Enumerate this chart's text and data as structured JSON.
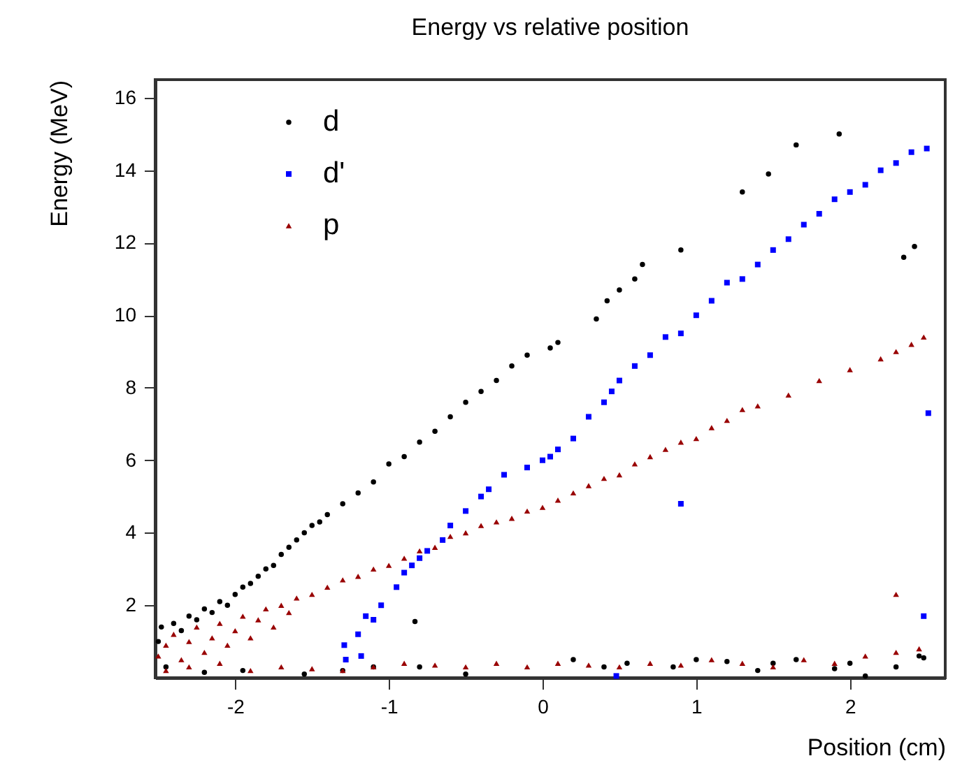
{
  "chart_data": {
    "type": "scatter",
    "title": "Energy vs relative position",
    "xlabel": "Position (cm)",
    "ylabel": "Energy (MeV)",
    "xlim": [
      -2.52,
      2.62
    ],
    "xticks": [
      -2,
      -1,
      0,
      1,
      2
    ],
    "ylim": [
      0,
      16.5
    ],
    "yticks": [
      2,
      4,
      6,
      8,
      10,
      12,
      14,
      16
    ],
    "grid": false,
    "legend": "top left",
    "series": [
      {
        "name": "d",
        "color": "#000000",
        "marker": "circle",
        "x": [
          -2.5,
          -2.48,
          -2.4,
          -2.35,
          -2.3,
          -2.25,
          -2.2,
          -2.15,
          -2.1,
          -2.05,
          -2.0,
          -1.95,
          -1.9,
          -1.85,
          -1.8,
          -1.75,
          -1.7,
          -1.65,
          -1.6,
          -1.55,
          -1.5,
          -1.45,
          -1.4,
          -1.3,
          -1.2,
          -1.1,
          -1.0,
          -0.9,
          -0.8,
          -0.7,
          -0.6,
          -0.5,
          -0.4,
          -0.3,
          -0.2,
          -0.1,
          0.05,
          0.1,
          0.35,
          0.42,
          0.5,
          0.6,
          0.65,
          0.9,
          1.3,
          1.47,
          1.65,
          1.93,
          2.35,
          2.42,
          -0.83,
          -2.45,
          -2.2,
          -1.95,
          -1.55,
          -1.3,
          -1.1,
          -0.8,
          -0.5,
          0.2,
          0.4,
          0.55,
          0.85,
          1.0,
          1.2,
          1.4,
          1.5,
          1.65,
          1.9,
          2.0,
          2.1,
          2.3,
          2.45,
          2.48
        ],
        "values": [
          1.0,
          1.4,
          1.5,
          1.3,
          1.7,
          1.6,
          1.9,
          1.8,
          2.1,
          2.0,
          2.3,
          2.5,
          2.6,
          2.8,
          3.0,
          3.1,
          3.4,
          3.6,
          3.8,
          4.0,
          4.2,
          4.3,
          4.5,
          4.8,
          5.1,
          5.4,
          5.9,
          6.1,
          6.5,
          6.8,
          7.2,
          7.6,
          7.9,
          8.2,
          8.6,
          8.9,
          9.1,
          9.25,
          9.9,
          10.4,
          10.7,
          11.0,
          11.4,
          11.8,
          13.4,
          13.9,
          14.7,
          15.0,
          11.6,
          11.9,
          1.55,
          0.3,
          0.15,
          0.2,
          0.1,
          0.2,
          0.3,
          0.3,
          0.1,
          0.5,
          0.3,
          0.4,
          0.3,
          0.5,
          0.45,
          0.2,
          0.4,
          0.5,
          0.25,
          0.4,
          0.05,
          0.3,
          0.6,
          0.55
        ]
      },
      {
        "name": "d'",
        "color": "#0000ff",
        "marker": "square",
        "x": [
          -1.28,
          -1.29,
          -1.2,
          -1.18,
          -1.15,
          -1.1,
          -1.05,
          -0.95,
          -0.9,
          -0.85,
          -0.8,
          -0.75,
          -0.65,
          -0.6,
          -0.5,
          -0.4,
          -0.35,
          -0.25,
          -0.1,
          0.0,
          0.05,
          0.1,
          0.2,
          0.3,
          0.4,
          0.45,
          0.5,
          0.6,
          0.7,
          0.8,
          0.9,
          1.0,
          1.1,
          1.2,
          1.3,
          1.4,
          1.5,
          1.6,
          1.7,
          1.8,
          1.9,
          2.0,
          2.1,
          2.2,
          2.3,
          2.4,
          2.5,
          0.9,
          2.51,
          2.48,
          0.48
        ],
        "values": [
          0.5,
          0.9,
          1.2,
          0.6,
          1.7,
          1.6,
          2.0,
          2.5,
          2.9,
          3.1,
          3.3,
          3.5,
          3.8,
          4.2,
          4.6,
          5.0,
          5.2,
          5.6,
          5.8,
          6.0,
          6.1,
          6.3,
          6.6,
          7.2,
          7.6,
          7.9,
          8.2,
          8.6,
          8.9,
          9.4,
          9.5,
          10.0,
          10.4,
          10.9,
          11.0,
          11.4,
          11.8,
          12.1,
          12.5,
          12.8,
          13.2,
          13.4,
          13.6,
          14.0,
          14.2,
          14.5,
          14.6,
          4.8,
          7.3,
          1.7,
          0.05
        ]
      },
      {
        "name": "p",
        "color": "#990000",
        "marker": "triangle",
        "x": [
          -2.5,
          -2.45,
          -2.4,
          -2.35,
          -2.3,
          -2.25,
          -2.2,
          -2.15,
          -2.1,
          -2.05,
          -2.0,
          -1.95,
          -1.9,
          -1.85,
          -1.8,
          -1.75,
          -1.7,
          -1.65,
          -1.6,
          -1.5,
          -1.4,
          -1.3,
          -1.2,
          -1.1,
          -1.0,
          -0.9,
          -0.8,
          -0.7,
          -0.6,
          -0.5,
          -0.4,
          -0.3,
          -0.2,
          -0.1,
          0.0,
          0.1,
          0.2,
          0.3,
          0.4,
          0.5,
          0.6,
          0.7,
          0.8,
          0.9,
          1.0,
          1.1,
          1.2,
          1.3,
          1.4,
          1.6,
          1.8,
          2.0,
          2.2,
          2.3,
          2.4,
          2.48,
          -2.45,
          -2.3,
          -2.1,
          -1.9,
          -1.7,
          -1.5,
          -1.3,
          -1.1,
          -0.9,
          -0.7,
          -0.5,
          -0.3,
          -0.1,
          0.1,
          0.3,
          0.5,
          0.7,
          0.9,
          1.1,
          1.3,
          1.5,
          1.7,
          1.9,
          2.1,
          2.3,
          2.45,
          2.3
        ],
        "values": [
          0.6,
          0.9,
          1.2,
          0.5,
          1.0,
          1.4,
          0.7,
          1.1,
          1.5,
          0.9,
          1.3,
          1.7,
          1.1,
          1.6,
          1.9,
          1.4,
          2.0,
          1.8,
          2.2,
          2.3,
          2.5,
          2.7,
          2.8,
          3.0,
          3.1,
          3.3,
          3.5,
          3.6,
          3.9,
          4.0,
          4.2,
          4.3,
          4.4,
          4.6,
          4.7,
          4.9,
          5.1,
          5.3,
          5.5,
          5.6,
          5.9,
          6.1,
          6.3,
          6.5,
          6.6,
          6.9,
          7.1,
          7.4,
          7.5,
          7.8,
          8.2,
          8.5,
          8.8,
          9.0,
          9.2,
          9.4,
          0.2,
          0.3,
          0.4,
          0.2,
          0.3,
          0.25,
          0.2,
          0.3,
          0.4,
          0.35,
          0.3,
          0.4,
          0.3,
          0.4,
          0.35,
          0.3,
          0.4,
          0.35,
          0.5,
          0.4,
          0.3,
          0.5,
          0.4,
          0.6,
          0.7,
          0.8,
          2.3
        ]
      }
    ]
  }
}
